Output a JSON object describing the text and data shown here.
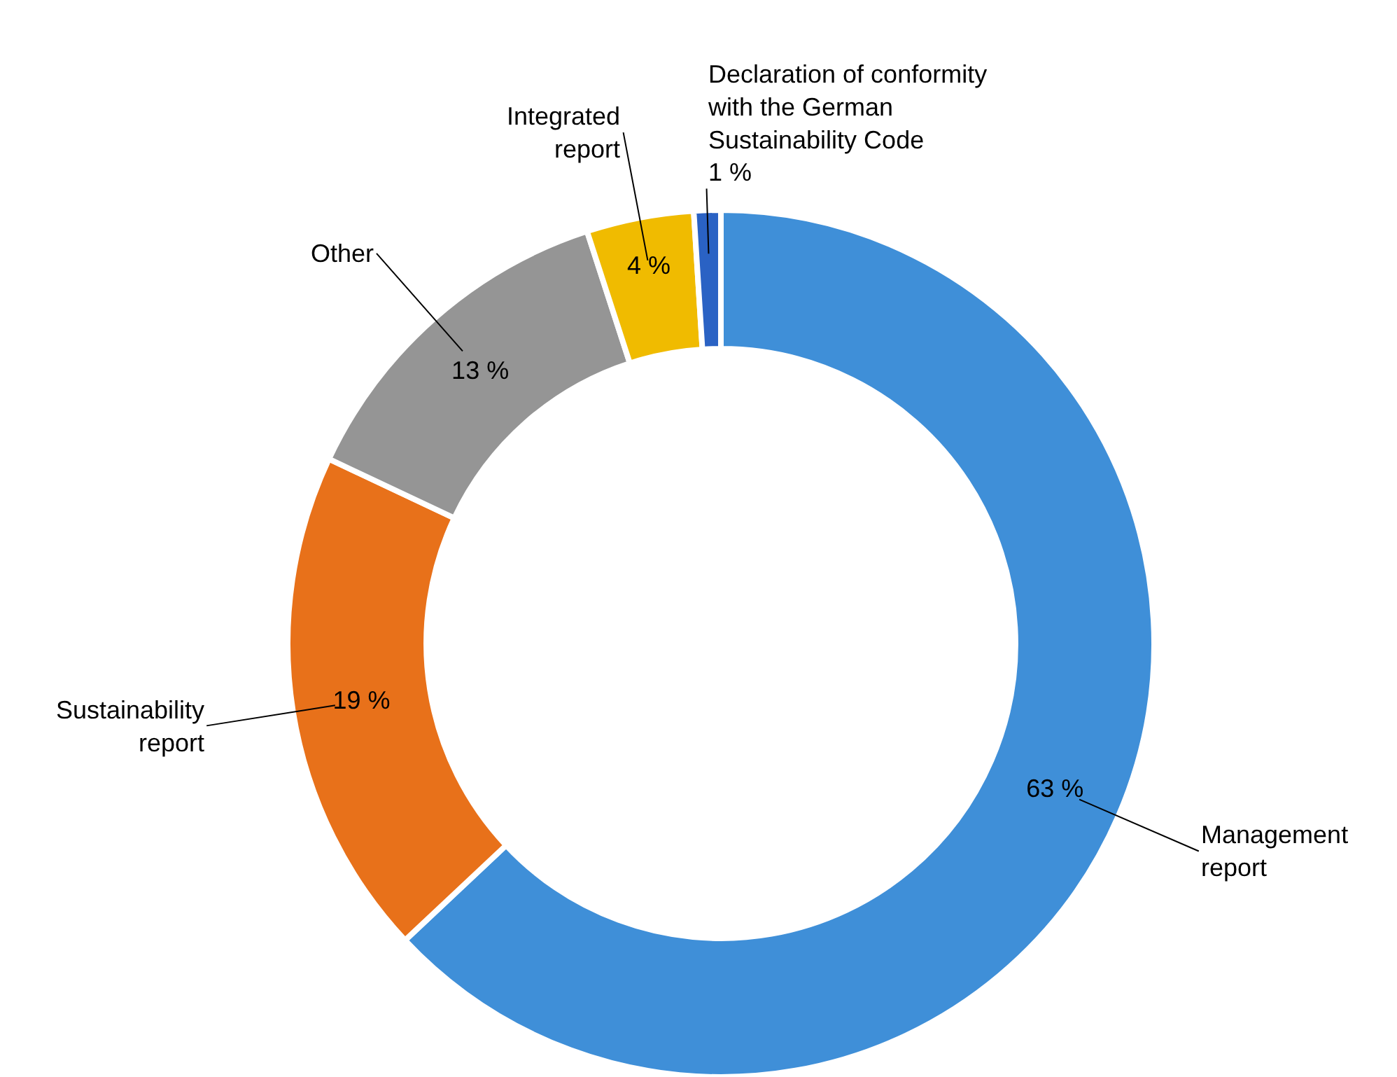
{
  "chart_data": {
    "type": "donut",
    "categories": [
      "Management report",
      "Sustainability report",
      "Other",
      "Integrated report",
      "Declaration of conformity with the German Sustainability Code"
    ],
    "values": [
      63,
      19,
      13,
      4,
      1
    ],
    "value_labels": [
      "63 %",
      "19 %",
      "13 %",
      "4 %",
      "1 %"
    ],
    "colors": [
      "#3f8fd8",
      "#e8711a",
      "#959595",
      "#f0bb00",
      "#2a62c4"
    ],
    "legend": false
  }
}
